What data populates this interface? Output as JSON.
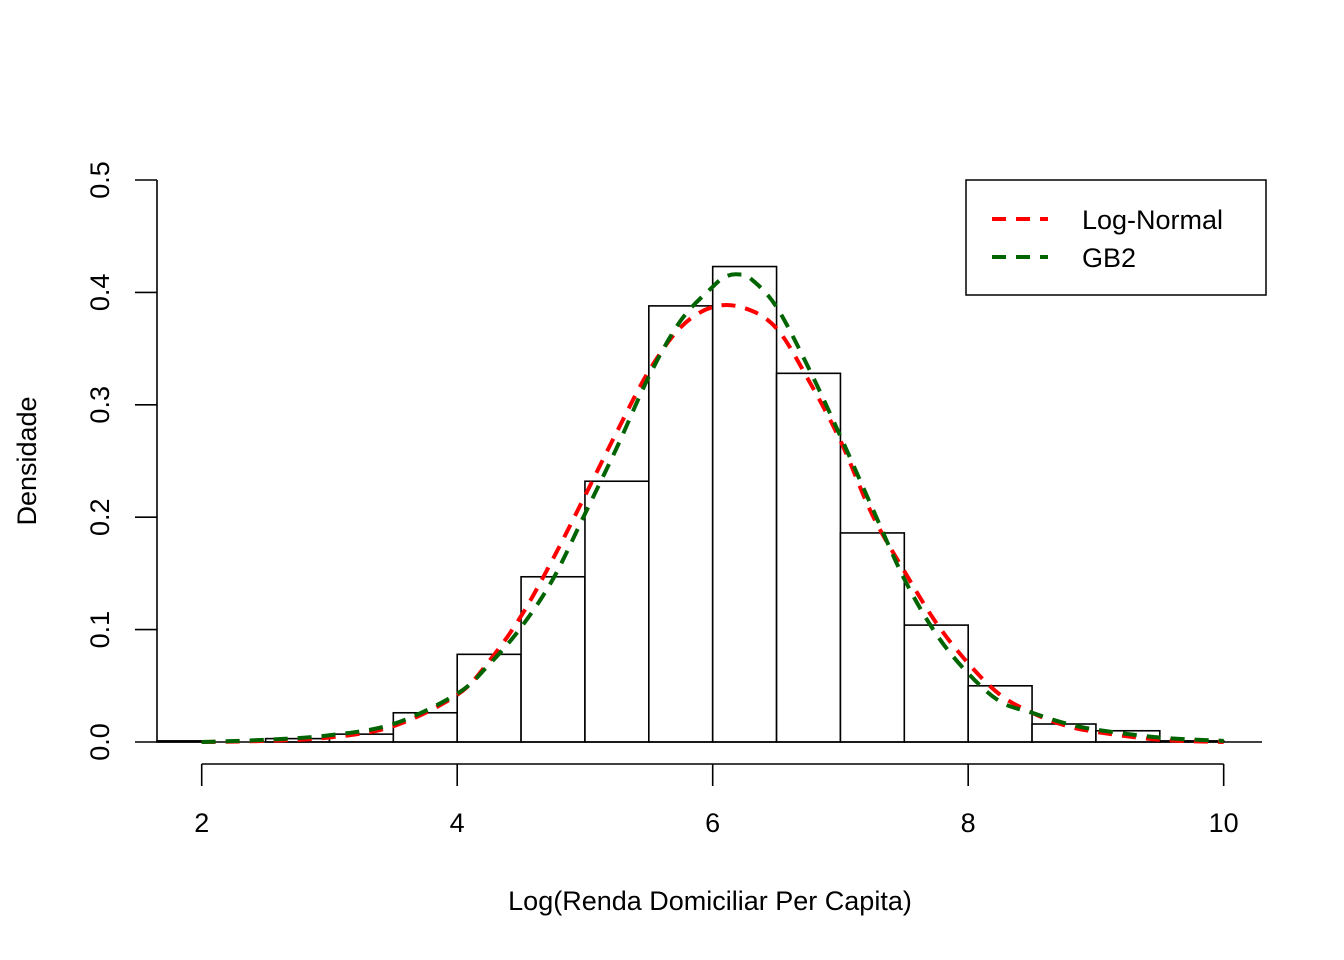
{
  "chart_data": {
    "type": "histogram",
    "title": "",
    "xlabel": "Log(Renda Domiciliar Per Capita)",
    "ylabel": "Densidade",
    "xlim": [
      1.65,
      10.3
    ],
    "ylim": [
      0,
      0.5
    ],
    "x_ticks": [
      2,
      4,
      6,
      8,
      10
    ],
    "x_tick_labels": [
      "2",
      "4",
      "6",
      "8",
      "10"
    ],
    "y_ticks": [
      0.0,
      0.1,
      0.2,
      0.3,
      0.4,
      0.5
    ],
    "y_tick_labels": [
      "0.0",
      "0.1",
      "0.2",
      "0.3",
      "0.4",
      "0.5"
    ],
    "grid": false,
    "legend_position": "top-right",
    "bins": [
      {
        "x0": 1.5,
        "x1": 2.0,
        "density": 0.001
      },
      {
        "x0": 2.0,
        "x1": 2.5,
        "density": 0.0
      },
      {
        "x0": 2.5,
        "x1": 3.0,
        "density": 0.003
      },
      {
        "x0": 3.0,
        "x1": 3.5,
        "density": 0.007
      },
      {
        "x0": 3.5,
        "x1": 4.0,
        "density": 0.026
      },
      {
        "x0": 4.0,
        "x1": 4.5,
        "density": 0.078
      },
      {
        "x0": 4.5,
        "x1": 5.0,
        "density": 0.147
      },
      {
        "x0": 5.0,
        "x1": 5.5,
        "density": 0.232
      },
      {
        "x0": 5.5,
        "x1": 6.0,
        "density": 0.388
      },
      {
        "x0": 6.0,
        "x1": 6.5,
        "density": 0.423
      },
      {
        "x0": 6.5,
        "x1": 7.0,
        "density": 0.328
      },
      {
        "x0": 7.0,
        "x1": 7.5,
        "density": 0.186
      },
      {
        "x0": 7.5,
        "x1": 8.0,
        "density": 0.104
      },
      {
        "x0": 8.0,
        "x1": 8.5,
        "density": 0.05
      },
      {
        "x0": 8.5,
        "x1": 9.0,
        "density": 0.016
      },
      {
        "x0": 9.0,
        "x1": 9.5,
        "density": 0.01
      },
      {
        "x0": 9.5,
        "x1": 10.0,
        "density": 0.001
      }
    ],
    "series": [
      {
        "name": "Log-Normal",
        "color": "#ff0000",
        "line_style": "dashed",
        "x": [
          2.0,
          2.5,
          3.0,
          3.5,
          4.0,
          4.25,
          4.5,
          4.75,
          5.0,
          5.25,
          5.5,
          5.75,
          6.0,
          6.25,
          6.5,
          6.75,
          7.0,
          7.25,
          7.5,
          7.75,
          8.0,
          8.25,
          8.5,
          8.75,
          9.0,
          9.5,
          10.0
        ],
        "y": [
          0.0,
          0.001,
          0.004,
          0.014,
          0.042,
          0.072,
          0.112,
          0.163,
          0.219,
          0.276,
          0.33,
          0.369,
          0.387,
          0.386,
          0.368,
          0.322,
          0.268,
          0.202,
          0.152,
          0.106,
          0.07,
          0.042,
          0.026,
          0.015,
          0.009,
          0.002,
          0.0
        ]
      },
      {
        "name": "GB2",
        "color": "#006400",
        "line_style": "dashed",
        "x": [
          2.0,
          2.5,
          3.0,
          3.5,
          4.0,
          4.25,
          4.5,
          4.75,
          5.0,
          5.25,
          5.5,
          5.75,
          6.0,
          6.1,
          6.2,
          6.3,
          6.5,
          6.75,
          7.0,
          7.25,
          7.5,
          7.75,
          8.0,
          8.25,
          8.5,
          8.75,
          9.0,
          9.5,
          10.0
        ],
        "y": [
          0.0,
          0.002,
          0.006,
          0.016,
          0.043,
          0.069,
          0.102,
          0.145,
          0.203,
          0.262,
          0.325,
          0.375,
          0.405,
          0.414,
          0.416,
          0.412,
          0.387,
          0.333,
          0.272,
          0.208,
          0.145,
          0.096,
          0.061,
          0.036,
          0.026,
          0.017,
          0.011,
          0.004,
          0.001
        ]
      }
    ]
  }
}
